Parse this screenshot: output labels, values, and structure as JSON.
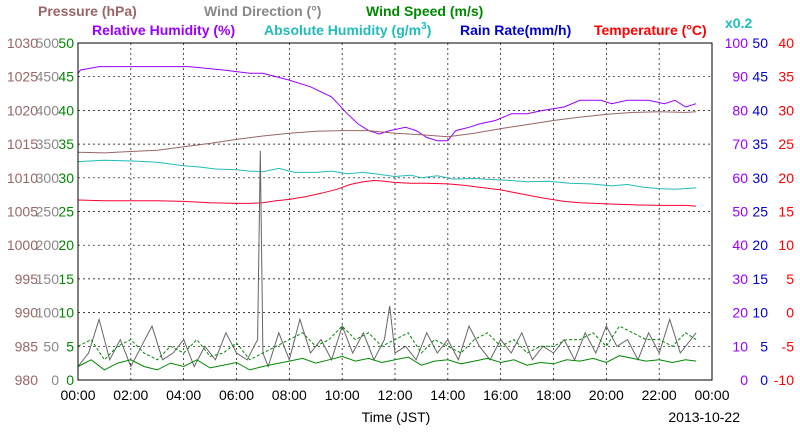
{
  "chart_data": {
    "type": "line",
    "date": "2013-10-22",
    "xlabel": "Time (JST)",
    "x_ticks": [
      "00:00",
      "02:00",
      "04:00",
      "06:00",
      "08:00",
      "10:00",
      "12:00",
      "14:00",
      "16:00",
      "18:00",
      "20:00",
      "22:00",
      "00:00"
    ],
    "grid": true,
    "legend_row1": {
      "pressure": "Pressure (hPa)",
      "wind_direction": "Wind Direction (°)",
      "wind_speed": "Wind Speed (m/s)"
    },
    "legend_row2": {
      "relative_humidity": "Relative Humidity (%)",
      "absolute_humidity": "Absolute Humidity (g/m",
      "absolute_humidity_sup": "3",
      "absolute_humidity_close": ")",
      "rain_rate": "Rain Rate(mm/h)",
      "temperature": "Temperature (°C)",
      "rain_scale": "x0.2"
    },
    "axes": {
      "pressure": {
        "range": [
          980,
          1030
        ],
        "ticks": [
          "1030",
          "1025",
          "1020",
          "1015",
          "1010",
          "1005",
          "1000",
          "995",
          "990",
          "985",
          "980"
        ],
        "color": "#996666"
      },
      "wind_direction": {
        "range": [
          0,
          500
        ],
        "ticks": [
          "500",
          "450",
          "400",
          "350",
          "300",
          "250",
          "200",
          "150",
          "100",
          "50",
          "0"
        ],
        "color": "#888888"
      },
      "wind_speed": {
        "range": [
          0,
          50
        ],
        "ticks": [
          "50",
          "45",
          "40",
          "35",
          "30",
          "25",
          "20",
          "15",
          "10",
          "5",
          "0"
        ],
        "color": "#008800"
      },
      "relative_humidity": {
        "range": [
          0,
          100
        ],
        "ticks": [
          "100",
          "90",
          "80",
          "70",
          "60",
          "50",
          "40",
          "30",
          "20",
          "10",
          "0"
        ],
        "color": "#9900ff"
      },
      "rain_rate": {
        "range": [
          0,
          50
        ],
        "ticks": [
          "50",
          "45",
          "40",
          "35",
          "30",
          "25",
          "20",
          "15",
          "10",
          "5",
          "0"
        ],
        "color": "#0000cc"
      },
      "temperature": {
        "range": [
          -10,
          40
        ],
        "ticks": [
          "40",
          "35",
          "30",
          "25",
          "20",
          "15",
          "10",
          "5",
          "0",
          "-5",
          "-10"
        ],
        "color": "#ff0000"
      }
    },
    "series": [
      {
        "name": "Relative Humidity (%)",
        "axis": "relative_humidity",
        "color": "#9900ff",
        "x": [
          0,
          0.1,
          0.8,
          4.2,
          5.5,
          6.5,
          7.0,
          8.0,
          8.8,
          9.6,
          10.2,
          10.6,
          11.0,
          11.4,
          11.8,
          12.4,
          12.8,
          13.2,
          13.6,
          14.0,
          14.3,
          14.8,
          15.2,
          15.8,
          16.4,
          17.0,
          17.6,
          18.4,
          19.0,
          19.8,
          20.2,
          20.8,
          21.6,
          22.2,
          22.6,
          23.0,
          23.4
        ],
        "y": [
          91,
          92,
          93,
          93,
          92,
          91,
          91,
          89,
          87,
          84,
          79,
          76,
          74,
          73,
          74,
          75,
          74,
          72,
          71,
          71,
          74,
          75,
          76,
          77,
          79,
          79,
          80,
          81,
          83,
          83,
          82,
          83,
          83,
          82,
          83,
          81,
          82
        ]
      },
      {
        "name": "Pressure (hPa)",
        "axis": "pressure",
        "color": "#996666",
        "x": [
          0,
          1,
          2,
          3,
          4,
          5,
          6,
          7,
          8,
          9,
          10,
          11,
          12,
          13,
          14,
          15,
          16,
          17,
          18,
          19,
          20,
          21,
          22,
          23,
          23.4
        ],
        "y": [
          1013.8,
          1013.7,
          1013.9,
          1014.1,
          1014.6,
          1015.1,
          1015.7,
          1016.2,
          1016.6,
          1016.9,
          1017.0,
          1017.0,
          1016.6,
          1016.4,
          1016.1,
          1016.6,
          1017.3,
          1017.9,
          1018.5,
          1019.0,
          1019.4,
          1019.7,
          1019.8,
          1019.7,
          1019.8
        ]
      },
      {
        "name": "Absolute Humidity (g/m3)",
        "axis": "wind_speed",
        "color": "#22bbbb",
        "x": [
          0,
          1,
          2,
          3,
          4,
          4.6,
          5.2,
          6,
          6.5,
          7,
          7.6,
          8.2,
          9,
          9.6,
          10.2,
          10.8,
          11.4,
          12,
          12.6,
          13,
          13.6,
          14.2,
          15,
          15.8,
          16.4,
          17,
          17.8,
          18.6,
          19.4,
          20.2,
          20.8,
          21.4,
          22,
          22.6,
          23.4
        ],
        "y": [
          32.4,
          32.6,
          32.5,
          32.3,
          31.8,
          31.6,
          31.3,
          31.2,
          31.0,
          30.9,
          31.4,
          30.8,
          30.8,
          31.0,
          30.6,
          30.8,
          30.5,
          30.2,
          30.4,
          30.0,
          30.3,
          29.8,
          29.9,
          29.7,
          29.6,
          29.4,
          29.5,
          29.2,
          29.1,
          28.8,
          29.0,
          28.6,
          28.4,
          28.3,
          28.5
        ]
      },
      {
        "name": "Temperature (°C)",
        "axis": "temperature",
        "color": "#ff0033",
        "x": [
          0,
          1,
          2,
          3,
          4,
          5,
          6,
          6.5,
          7,
          7.5,
          8,
          8.6,
          9.2,
          9.8,
          10.3,
          10.8,
          11.2,
          11.6,
          12,
          12.6,
          13.2,
          14,
          14.6,
          15.2,
          16,
          16.8,
          17.6,
          18.4,
          19,
          19.6,
          20.2,
          21,
          22,
          23,
          23.4
        ],
        "y": [
          16.7,
          16.6,
          16.6,
          16.6,
          16.5,
          16.3,
          16.2,
          16.2,
          16.3,
          16.6,
          16.8,
          17.2,
          17.7,
          18.3,
          19.0,
          19.4,
          19.6,
          19.5,
          19.3,
          19.2,
          19.2,
          19.1,
          18.9,
          18.6,
          18.2,
          17.6,
          17.0,
          16.5,
          16.3,
          16.2,
          16.1,
          16.0,
          15.9,
          15.9,
          15.8
        ]
      },
      {
        "name": "Wind Direction (°)",
        "axis": "wind_direction",
        "color": "#666666",
        "x": [
          0,
          0.4,
          0.8,
          1.2,
          1.6,
          2,
          2.4,
          2.8,
          3.2,
          3.6,
          4,
          4.4,
          4.8,
          5.2,
          5.6,
          6,
          6.4,
          6.8,
          6.9,
          7.0,
          7.2,
          7.6,
          8,
          8.4,
          8.8,
          9.2,
          9.6,
          10,
          10.4,
          10.8,
          11.2,
          11.6,
          11.8,
          12,
          12.4,
          12.8,
          13.2,
          13.6,
          14,
          14.4,
          14.8,
          15.2,
          15.6,
          16,
          16.4,
          16.8,
          17.2,
          17.6,
          18,
          18.4,
          18.8,
          19.2,
          19.6,
          20,
          20.4,
          20.8,
          21.2,
          21.6,
          22,
          22.4,
          22.8,
          23.2,
          23.4
        ],
        "y": [
          20,
          40,
          90,
          30,
          60,
          20,
          50,
          80,
          30,
          40,
          60,
          20,
          50,
          30,
          70,
          40,
          30,
          60,
          340,
          40,
          20,
          70,
          30,
          90,
          40,
          60,
          30,
          80,
          40,
          70,
          30,
          60,
          110,
          40,
          50,
          30,
          70,
          40,
          60,
          30,
          80,
          50,
          30,
          60,
          40,
          70,
          30,
          50,
          40,
          60,
          30,
          70,
          40,
          80,
          50,
          60,
          30,
          70,
          40,
          90,
          40,
          60,
          70
        ]
      },
      {
        "name": "Wind Speed (m/s)",
        "axis": "wind_speed",
        "color": "#008800",
        "x": [
          0,
          0.5,
          1,
          1.5,
          2,
          2.5,
          3,
          3.5,
          4,
          4.5,
          5,
          5.5,
          6,
          6.5,
          7,
          7.5,
          8,
          8.5,
          9,
          9.5,
          10,
          10.5,
          11,
          11.5,
          12,
          12.5,
          13,
          13.5,
          14,
          14.5,
          15,
          15.5,
          16,
          16.5,
          17,
          17.5,
          18,
          18.5,
          19,
          19.5,
          20,
          20.5,
          21,
          21.5,
          22,
          22.5,
          23,
          23.4
        ],
        "y": [
          2,
          3,
          1.5,
          2.5,
          3,
          2,
          1.5,
          2.5,
          2,
          3,
          1.8,
          2.2,
          2.6,
          1.5,
          2,
          2.4,
          2.8,
          3.2,
          2.5,
          3,
          3.5,
          2.8,
          3.2,
          2.6,
          3,
          3.4,
          2.2,
          2.8,
          3,
          2.4,
          2.8,
          3.2,
          2.6,
          3,
          2.2,
          2.6,
          2.4,
          3,
          2.8,
          3.2,
          2.6,
          3.6,
          3.2,
          2.8,
          3,
          2.6,
          3,
          2.8
        ]
      },
      {
        "name": "Wind Speed gust",
        "axis": "wind_speed",
        "color": "#008800",
        "dashed": true,
        "x": [
          0,
          0.5,
          1,
          1.5,
          2,
          2.5,
          3,
          3.5,
          4,
          4.5,
          5,
          5.5,
          6,
          6.5,
          7,
          7.5,
          8,
          8.5,
          9,
          9.5,
          10,
          10.5,
          11,
          11.5,
          12,
          12.5,
          13,
          13.5,
          14,
          14.5,
          15,
          15.5,
          16,
          16.5,
          17,
          17.5,
          18,
          18.5,
          19,
          19.5,
          20,
          20.5,
          21,
          21.5,
          22,
          22.5,
          23,
          23.4
        ],
        "y": [
          5,
          6,
          3,
          5,
          6,
          4,
          3,
          5,
          4,
          6,
          3.5,
          4,
          5.5,
          3,
          4,
          5,
          6,
          7,
          5,
          6,
          8,
          6,
          7,
          5,
          6,
          7,
          4,
          6,
          5,
          4,
          6,
          7,
          5,
          6,
          4,
          5,
          5,
          6,
          6,
          7,
          5,
          8,
          7,
          6,
          6,
          5,
          7,
          6
        ]
      },
      {
        "name": "Rain Rate(mm/h)",
        "axis": "rain_rate",
        "color": "#0000cc",
        "x": [
          0,
          23.4
        ],
        "y": [
          0,
          0
        ]
      }
    ]
  }
}
